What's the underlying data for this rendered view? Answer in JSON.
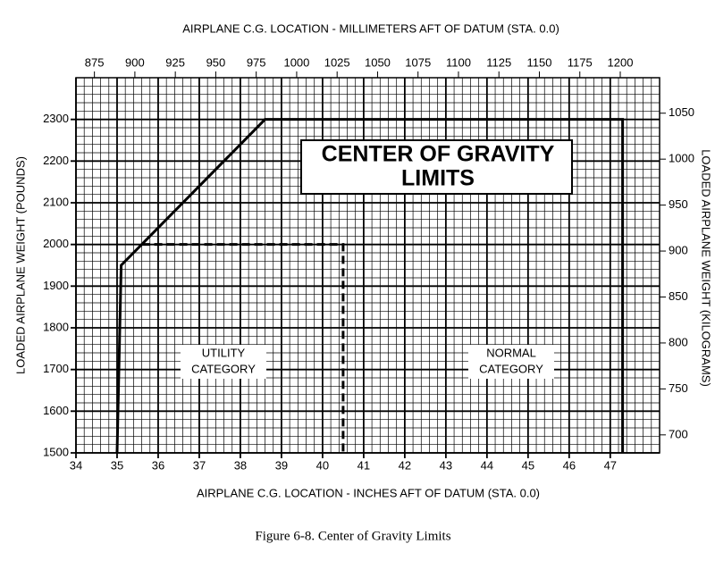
{
  "chart_data": {
    "type": "line",
    "x2label": "AIRPLANE C.G. LOCATION - MILLIMETERS AFT OF DATUM (STA. 0.0)",
    "xlabel": "AIRPLANE C.G. LOCATION - INCHES AFT OF DATUM (STA. 0.0)",
    "ylabel": "LOADED AIRPLANE WEIGHT (POUNDS)",
    "y2label": "LOADED AIRPLANE WEIGHT (KILOGRAMS)",
    "caption": "Figure 6-8.   Center of Gravity Limits",
    "heading": [
      "CENTER OF GRAVITY",
      "LIMITS"
    ],
    "annotations": [
      [
        "UTILITY",
        "CATEGORY"
      ],
      [
        "NORMAL",
        "CATEGORY"
      ]
    ],
    "series": [
      {
        "color": "#000000",
        "style": "solid",
        "x": [
          35.0,
          35.1,
          38.6,
          47.3,
          47.3
        ],
        "values": [
          1500,
          1950,
          2300,
          2300,
          1500
        ]
      },
      {
        "color": "#000000",
        "style": "dashed",
        "x": [
          35.6,
          40.5,
          40.5
        ],
        "values": [
          2000,
          2000,
          1500
        ]
      }
    ],
    "xlim": [
      34,
      48.2
    ],
    "xticks": [
      34,
      35,
      36,
      37,
      38,
      39,
      40,
      41,
      42,
      43,
      44,
      45,
      46,
      47
    ],
    "ylim": [
      1500,
      2400
    ],
    "yticks": [
      1500,
      1600,
      1700,
      1800,
      1900,
      2000,
      2100,
      2200,
      2300
    ],
    "x2lim": [
      863.6,
      1224.3
    ],
    "x2ticks": [
      875,
      900,
      925,
      950,
      975,
      1000,
      1025,
      1050,
      1075,
      1100,
      1125,
      1150,
      1175,
      1200
    ],
    "y2lim": [
      680.4,
      1088.6
    ],
    "y2ticks": [
      700,
      750,
      800,
      850,
      900,
      950,
      1000,
      1050
    ],
    "grid": true,
    "minor_divisions": 5
  }
}
